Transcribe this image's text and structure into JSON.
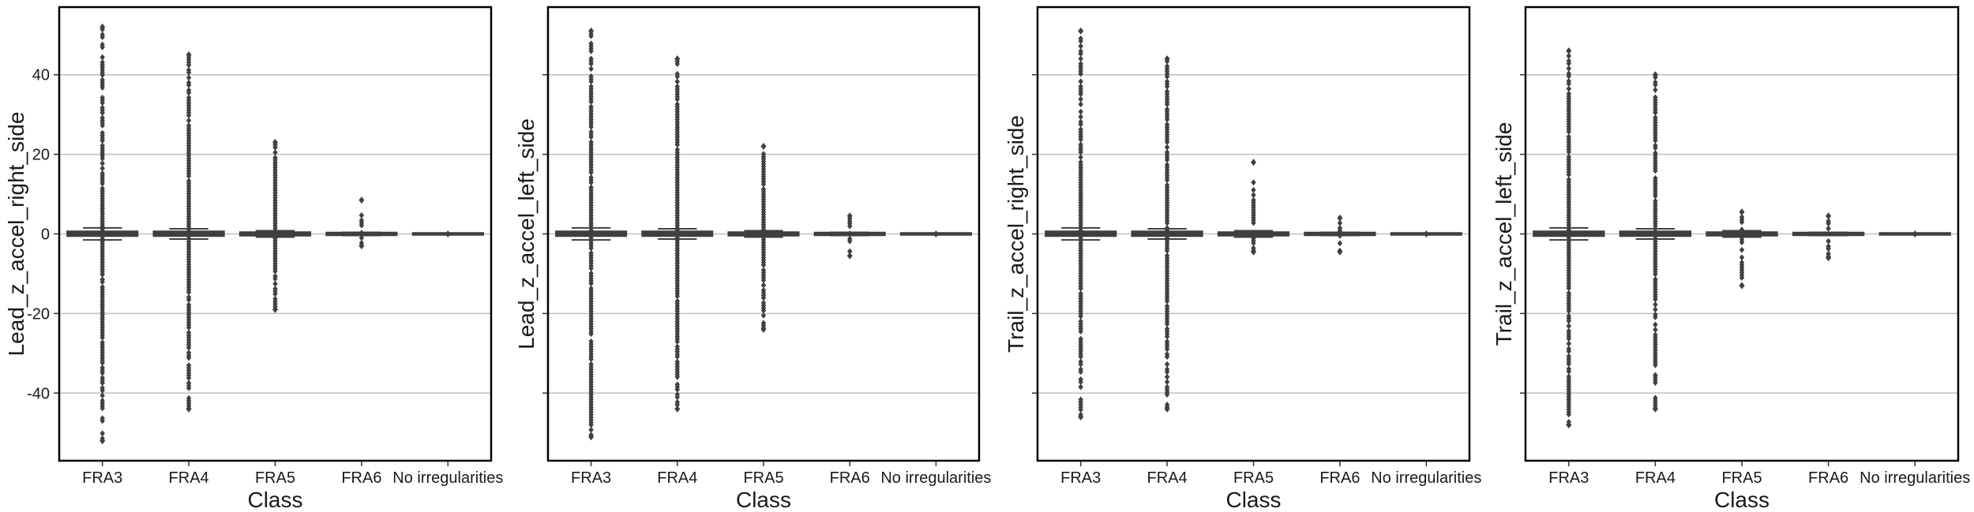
{
  "figure": {
    "background": "#ffffff",
    "frame_color": "#000000",
    "grid_color": "#bfbfbf",
    "box_color": "#3f3f3f",
    "marker_color": "#404040"
  },
  "chart_data": [
    {
      "type": "box",
      "xlabel": "Class",
      "ylabel": "Lead_z_accel_right_side",
      "categories": [
        "FRA3",
        "FRA4",
        "FRA5",
        "FRA6",
        "No irregularities"
      ],
      "ylim": [
        -57,
        57
      ],
      "yticks": [
        -40,
        -20,
        0,
        20,
        40
      ],
      "show_ytick_labels": true,
      "grid": "horizontal",
      "boxes": [
        {
          "q1": -0.3,
          "median": 0,
          "q3": 0.4,
          "whisker_low": -1.5,
          "whisker_high": 1.5,
          "outlier_min": -52,
          "outlier_max": 52
        },
        {
          "q1": -0.3,
          "median": 0,
          "q3": 0.4,
          "whisker_low": -1.3,
          "whisker_high": 1.3,
          "outlier_min": -44,
          "outlier_max": 45
        },
        {
          "q1": -0.2,
          "median": 0,
          "q3": 0.2,
          "whisker_low": -0.8,
          "whisker_high": 0.8,
          "outlier_min": -19,
          "outlier_max": 23
        },
        {
          "q1": -0.1,
          "median": 0,
          "q3": 0.1,
          "whisker_low": -0.4,
          "whisker_high": 0.4,
          "outlier_min": -3,
          "outlier_max": 8.5
        },
        {
          "q1": 0,
          "median": 0,
          "q3": 0,
          "whisker_low": 0,
          "whisker_high": 0,
          "outlier_min": 0,
          "outlier_max": 0
        }
      ]
    },
    {
      "type": "box",
      "xlabel": "Class",
      "ylabel": "Lead_z_accel_left_side",
      "categories": [
        "FRA3",
        "FRA4",
        "FRA5",
        "FRA6",
        "No irregularities"
      ],
      "ylim": [
        -57,
        57
      ],
      "yticks": [
        -40,
        -20,
        0,
        20,
        40
      ],
      "show_ytick_labels": false,
      "grid": "horizontal",
      "boxes": [
        {
          "q1": -0.3,
          "median": 0,
          "q3": 0.4,
          "whisker_low": -1.5,
          "whisker_high": 1.5,
          "outlier_min": -51,
          "outlier_max": 51
        },
        {
          "q1": -0.3,
          "median": 0,
          "q3": 0.4,
          "whisker_low": -1.3,
          "whisker_high": 1.3,
          "outlier_min": -44,
          "outlier_max": 44
        },
        {
          "q1": -0.2,
          "median": 0,
          "q3": 0.2,
          "whisker_low": -0.8,
          "whisker_high": 0.8,
          "outlier_min": -24,
          "outlier_max": 22
        },
        {
          "q1": -0.1,
          "median": 0,
          "q3": 0.1,
          "whisker_low": -0.4,
          "whisker_high": 0.4,
          "outlier_min": -5.5,
          "outlier_max": 4.5
        },
        {
          "q1": 0,
          "median": 0,
          "q3": 0,
          "whisker_low": 0,
          "whisker_high": 0,
          "outlier_min": 0,
          "outlier_max": 0
        }
      ]
    },
    {
      "type": "box",
      "xlabel": "Class",
      "ylabel": "Trail_z_accel_right_side",
      "categories": [
        "FRA3",
        "FRA4",
        "FRA5",
        "FRA6",
        "No irregularities"
      ],
      "ylim": [
        -57,
        57
      ],
      "yticks": [
        -40,
        -20,
        0,
        20,
        40
      ],
      "show_ytick_labels": false,
      "grid": "horizontal",
      "boxes": [
        {
          "q1": -0.3,
          "median": 0,
          "q3": 0.4,
          "whisker_low": -1.5,
          "whisker_high": 1.5,
          "outlier_min": -46,
          "outlier_max": 51
        },
        {
          "q1": -0.3,
          "median": 0,
          "q3": 0.4,
          "whisker_low": -1.3,
          "whisker_high": 1.3,
          "outlier_min": -44,
          "outlier_max": 44
        },
        {
          "q1": -0.2,
          "median": 0,
          "q3": 0.2,
          "whisker_low": -0.8,
          "whisker_high": 0.8,
          "outlier_min": -4.5,
          "outlier_max": 18
        },
        {
          "q1": -0.1,
          "median": 0,
          "q3": 0.1,
          "whisker_low": -0.4,
          "whisker_high": 0.4,
          "outlier_min": -4.5,
          "outlier_max": 4
        },
        {
          "q1": 0,
          "median": 0,
          "q3": 0,
          "whisker_low": 0,
          "whisker_high": 0,
          "outlier_min": 0,
          "outlier_max": 0
        }
      ]
    },
    {
      "type": "box",
      "xlabel": "Class",
      "ylabel": "Trail_z_accel_left_side",
      "categories": [
        "FRA3",
        "FRA4",
        "FRA5",
        "FRA6",
        "No irregularities"
      ],
      "ylim": [
        -57,
        57
      ],
      "yticks": [
        -40,
        -20,
        0,
        20,
        40
      ],
      "show_ytick_labels": false,
      "grid": "horizontal",
      "boxes": [
        {
          "q1": -0.3,
          "median": 0,
          "q3": 0.4,
          "whisker_low": -1.5,
          "whisker_high": 1.5,
          "outlier_min": -48,
          "outlier_max": 46
        },
        {
          "q1": -0.3,
          "median": 0,
          "q3": 0.4,
          "whisker_low": -1.3,
          "whisker_high": 1.3,
          "outlier_min": -44,
          "outlier_max": 40
        },
        {
          "q1": -0.2,
          "median": 0,
          "q3": 0.2,
          "whisker_low": -0.8,
          "whisker_high": 0.8,
          "outlier_min": -13,
          "outlier_max": 5.5
        },
        {
          "q1": -0.1,
          "median": 0,
          "q3": 0.1,
          "whisker_low": -0.4,
          "whisker_high": 0.4,
          "outlier_min": -6,
          "outlier_max": 4.5
        },
        {
          "q1": 0,
          "median": 0,
          "q3": 0,
          "whisker_low": 0,
          "whisker_high": 0,
          "outlier_min": 0,
          "outlier_max": 0
        }
      ]
    }
  ]
}
